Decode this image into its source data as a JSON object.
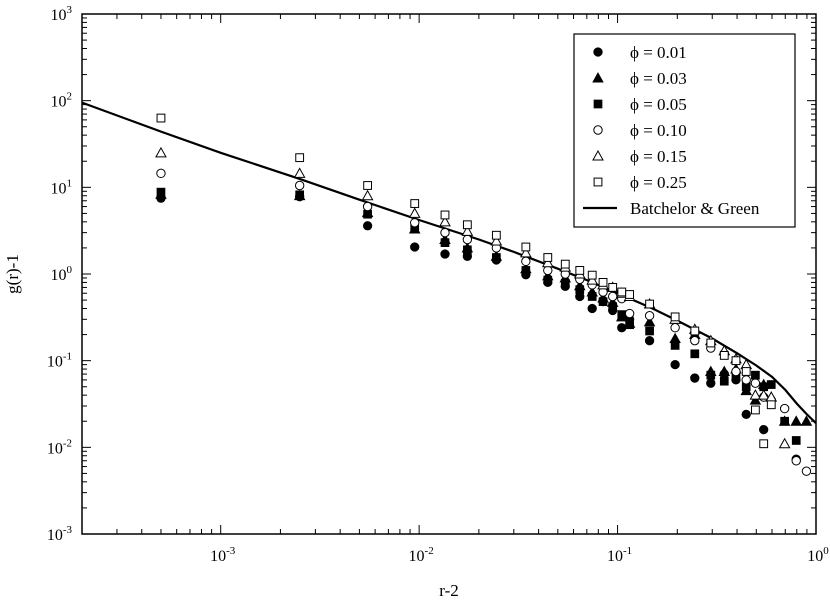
{
  "chart_data": {
    "type": "scatter",
    "xlabel": "r-2",
    "ylabel": "g(r)-1",
    "xscale": "log",
    "yscale": "log",
    "xlim": [
      0.0002,
      1
    ],
    "ylim": [
      0.001,
      1000
    ],
    "x_ticks": [
      {
        "base": "10",
        "exp": "-3",
        "value": 0.001
      },
      {
        "base": "10",
        "exp": "-2",
        "value": 0.01
      },
      {
        "base": "10",
        "exp": "-1",
        "value": 0.1
      },
      {
        "base": "10",
        "exp": "0",
        "value": 1
      }
    ],
    "y_ticks": [
      {
        "base": "10",
        "exp": "-3",
        "value": 0.001
      },
      {
        "base": "10",
        "exp": "-2",
        "value": 0.01
      },
      {
        "base": "10",
        "exp": "-1",
        "value": 0.1
      },
      {
        "base": "10",
        "exp": "0",
        "value": 1
      },
      {
        "base": "10",
        "exp": "1",
        "value": 10
      },
      {
        "base": "10",
        "exp": "2",
        "value": 100
      },
      {
        "base": "10",
        "exp": "3",
        "value": 1000
      }
    ],
    "grid": false,
    "legend_position": "top-right",
    "series": [
      {
        "name": "ϕ = 0.01",
        "marker": "filled-circle",
        "points": [
          [
            0.0005,
            7.5
          ],
          [
            0.0025,
            7.8
          ],
          [
            0.0055,
            3.6
          ],
          [
            0.0095,
            2.05
          ],
          [
            0.0135,
            1.7
          ],
          [
            0.0175,
            1.6
          ],
          [
            0.0245,
            1.45
          ],
          [
            0.0345,
            0.98
          ],
          [
            0.0445,
            0.8
          ],
          [
            0.0545,
            0.72
          ],
          [
            0.0645,
            0.55
          ],
          [
            0.0745,
            0.4
          ],
          [
            0.0845,
            0.48
          ],
          [
            0.0945,
            0.38
          ],
          [
            0.105,
            0.24
          ],
          [
            0.115,
            0.3
          ],
          [
            0.145,
            0.17
          ],
          [
            0.195,
            0.09
          ],
          [
            0.245,
            0.063
          ],
          [
            0.295,
            0.055
          ],
          [
            0.345,
            0.07
          ],
          [
            0.395,
            0.06
          ],
          [
            0.445,
            0.024
          ],
          [
            0.545,
            0.016
          ],
          [
            0.795,
            0.0073
          ]
        ]
      },
      {
        "name": "ϕ = 0.03",
        "marker": "filled-triangle",
        "points": [
          [
            0.0005,
            8.3
          ],
          [
            0.0025,
            8.0
          ],
          [
            0.0055,
            5.1
          ],
          [
            0.0095,
            3.3
          ],
          [
            0.0135,
            2.5
          ],
          [
            0.0175,
            2.0
          ],
          [
            0.0245,
            1.6
          ],
          [
            0.0345,
            1.15
          ],
          [
            0.0445,
            0.95
          ],
          [
            0.0545,
            0.9
          ],
          [
            0.0645,
            0.73
          ],
          [
            0.0745,
            0.62
          ],
          [
            0.0845,
            0.53
          ],
          [
            0.0945,
            0.47
          ],
          [
            0.105,
            0.32
          ],
          [
            0.115,
            0.27
          ],
          [
            0.145,
            0.28
          ],
          [
            0.195,
            0.18
          ],
          [
            0.245,
            0.2
          ],
          [
            0.295,
            0.075
          ],
          [
            0.345,
            0.075
          ],
          [
            0.395,
            0.08
          ],
          [
            0.445,
            0.045
          ],
          [
            0.495,
            0.035
          ],
          [
            0.545,
            0.053
          ],
          [
            0.695,
            0.02
          ],
          [
            0.795,
            0.02
          ],
          [
            0.895,
            0.02
          ]
        ]
      },
      {
        "name": "ϕ = 0.05",
        "marker": "filled-square",
        "points": [
          [
            0.0005,
            8.8
          ],
          [
            0.0025,
            8.2
          ],
          [
            0.0055,
            4.9
          ],
          [
            0.0095,
            3.3
          ],
          [
            0.0135,
            2.3
          ],
          [
            0.0175,
            1.9
          ],
          [
            0.0245,
            1.55
          ],
          [
            0.0345,
            1.1
          ],
          [
            0.0445,
            0.85
          ],
          [
            0.0545,
            0.78
          ],
          [
            0.0645,
            0.66
          ],
          [
            0.0745,
            0.55
          ],
          [
            0.0845,
            0.48
          ],
          [
            0.0945,
            0.42
          ],
          [
            0.105,
            0.34
          ],
          [
            0.115,
            0.26
          ],
          [
            0.145,
            0.22
          ],
          [
            0.195,
            0.15
          ],
          [
            0.245,
            0.12
          ],
          [
            0.295,
            0.068
          ],
          [
            0.345,
            0.058
          ],
          [
            0.395,
            0.067
          ],
          [
            0.445,
            0.05
          ],
          [
            0.495,
            0.068
          ],
          [
            0.545,
            0.05
          ],
          [
            0.595,
            0.053
          ],
          [
            0.695,
            0.02
          ],
          [
            0.795,
            0.012
          ]
        ]
      },
      {
        "name": "ϕ = 0.10",
        "marker": "open-circle",
        "points": [
          [
            0.0005,
            14.5
          ],
          [
            0.0025,
            10.5
          ],
          [
            0.0055,
            6.0
          ],
          [
            0.0095,
            3.9
          ],
          [
            0.0135,
            3.0
          ],
          [
            0.0175,
            2.5
          ],
          [
            0.0245,
            2.0
          ],
          [
            0.0345,
            1.4
          ],
          [
            0.0445,
            1.1
          ],
          [
            0.0545,
            1.0
          ],
          [
            0.0645,
            0.87
          ],
          [
            0.0745,
            0.75
          ],
          [
            0.0845,
            0.62
          ],
          [
            0.0945,
            0.55
          ],
          [
            0.105,
            0.52
          ],
          [
            0.115,
            0.35
          ],
          [
            0.145,
            0.33
          ],
          [
            0.195,
            0.24
          ],
          [
            0.245,
            0.17
          ],
          [
            0.295,
            0.14
          ],
          [
            0.345,
            0.12
          ],
          [
            0.395,
            0.075
          ],
          [
            0.445,
            0.06
          ],
          [
            0.495,
            0.055
          ],
          [
            0.545,
            0.038
          ],
          [
            0.595,
            0.035
          ],
          [
            0.695,
            0.028
          ],
          [
            0.795,
            0.007
          ],
          [
            0.895,
            0.0053
          ]
        ]
      },
      {
        "name": "ϕ = 0.15",
        "marker": "open-triangle",
        "points": [
          [
            0.0005,
            25
          ],
          [
            0.0025,
            14.5
          ],
          [
            0.0055,
            8.0
          ],
          [
            0.0095,
            5.0
          ],
          [
            0.0135,
            4.0
          ],
          [
            0.0175,
            3.1
          ],
          [
            0.0245,
            2.4
          ],
          [
            0.0345,
            1.75
          ],
          [
            0.0445,
            1.35
          ],
          [
            0.0545,
            1.2
          ],
          [
            0.0645,
            1.0
          ],
          [
            0.0745,
            0.85
          ],
          [
            0.0845,
            0.75
          ],
          [
            0.0945,
            0.7
          ],
          [
            0.105,
            0.6
          ],
          [
            0.115,
            0.55
          ],
          [
            0.145,
            0.45
          ],
          [
            0.195,
            0.3
          ],
          [
            0.245,
            0.23
          ],
          [
            0.295,
            0.17
          ],
          [
            0.345,
            0.13
          ],
          [
            0.395,
            0.105
          ],
          [
            0.445,
            0.09
          ],
          [
            0.495,
            0.04
          ],
          [
            0.545,
            0.04
          ],
          [
            0.595,
            0.038
          ],
          [
            0.695,
            0.011
          ]
        ]
      },
      {
        "name": "ϕ = 0.25",
        "marker": "open-square",
        "points": [
          [
            0.0005,
            63
          ],
          [
            0.0025,
            22
          ],
          [
            0.0055,
            10.5
          ],
          [
            0.0095,
            6.5
          ],
          [
            0.0135,
            4.8
          ],
          [
            0.0175,
            3.7
          ],
          [
            0.0245,
            2.8
          ],
          [
            0.0345,
            2.05
          ],
          [
            0.0445,
            1.55
          ],
          [
            0.0545,
            1.3
          ],
          [
            0.0645,
            1.1
          ],
          [
            0.0745,
            0.97
          ],
          [
            0.0845,
            0.8
          ],
          [
            0.0945,
            0.7
          ],
          [
            0.105,
            0.62
          ],
          [
            0.115,
            0.58
          ],
          [
            0.145,
            0.45
          ],
          [
            0.195,
            0.32
          ],
          [
            0.245,
            0.22
          ],
          [
            0.295,
            0.16
          ],
          [
            0.345,
            0.115
          ],
          [
            0.395,
            0.1
          ],
          [
            0.445,
            0.075
          ],
          [
            0.495,
            0.027
          ],
          [
            0.545,
            0.011
          ],
          [
            0.595,
            0.031
          ]
        ]
      }
    ],
    "lines": [
      {
        "name": "Batchelor & Green",
        "points": [
          [
            0.0002,
            95
          ],
          [
            0.0005,
            44
          ],
          [
            0.001,
            25
          ],
          [
            0.0025,
            12.5
          ],
          [
            0.005,
            7.2
          ],
          [
            0.01,
            4.2
          ],
          [
            0.02,
            2.5
          ],
          [
            0.03,
            1.8
          ],
          [
            0.05,
            1.15
          ],
          [
            0.07,
            0.85
          ],
          [
            0.1,
            0.6
          ],
          [
            0.15,
            0.4
          ],
          [
            0.2,
            0.29
          ],
          [
            0.3,
            0.18
          ],
          [
            0.4,
            0.122
          ],
          [
            0.5,
            0.088
          ],
          [
            0.6,
            0.065
          ],
          [
            0.7,
            0.046
          ],
          [
            0.8,
            0.032
          ],
          [
            0.9,
            0.024
          ],
          [
            1.0,
            0.019
          ]
        ]
      }
    ]
  }
}
